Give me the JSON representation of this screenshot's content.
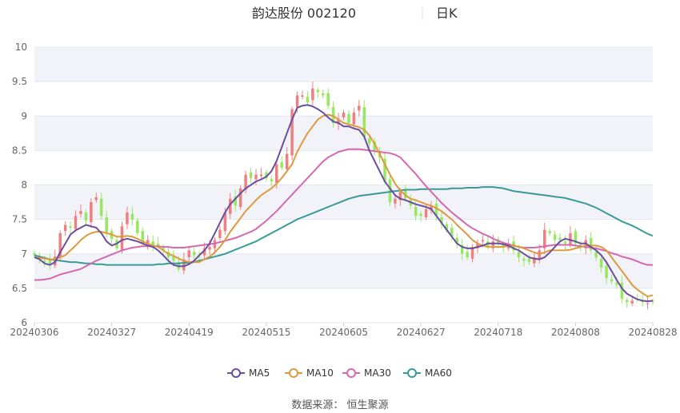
{
  "header": {
    "stock_title": "韵达股份 002120",
    "period": "日K"
  },
  "source": "数据来源： 恒生聚源",
  "colors": {
    "up": "#f08080",
    "down": "#95e85f",
    "ma5": "#6b4ea0",
    "ma10": "#e09a3e",
    "ma30": "#d568b0",
    "ma60": "#3a9999",
    "band": "#f2f3f8",
    "grid": "#e3e5ee"
  },
  "chart_data": {
    "type": "candlestick",
    "ylim": [
      6,
      10
    ],
    "y_ticks": [
      "6",
      "6.5",
      "7",
      "7.5",
      "8",
      "8.5",
      "9",
      "9.5",
      "10"
    ],
    "x_ticks": [
      "20240306",
      "20240327",
      "20240419",
      "20240515",
      "20240605",
      "20240627",
      "20240718",
      "20240808",
      "20240828"
    ],
    "legend": [
      {
        "key": "ma5",
        "label": "MA5"
      },
      {
        "key": "ma10",
        "label": "MA10"
      },
      {
        "key": "ma30",
        "label": "MA30"
      },
      {
        "key": "ma60",
        "label": "MA60"
      }
    ],
    "closes": [
      6.98,
      6.92,
      6.88,
      6.85,
      6.96,
      7.3,
      7.42,
      7.38,
      7.55,
      7.62,
      7.48,
      7.75,
      7.82,
      7.55,
      7.3,
      7.22,
      7.08,
      7.4,
      7.6,
      7.5,
      7.3,
      7.15,
      7.2,
      7.12,
      7.12,
      7.05,
      6.95,
      6.9,
      6.78,
      6.92,
      7.05,
      6.98,
      6.95,
      7.08,
      7.1,
      7.2,
      7.35,
      7.6,
      7.8,
      7.7,
      7.95,
      8.15,
      8.1,
      8.15,
      8.15,
      8.1,
      8.05,
      8.3,
      8.25,
      8.45,
      9.1,
      9.3,
      9.3,
      9.2,
      9.4,
      9.35,
      9.3,
      9.15,
      8.9,
      8.95,
      9.05,
      8.9,
      9.05,
      9.15,
      8.7,
      8.6,
      8.5,
      8.4,
      8.05,
      7.75,
      7.8,
      7.9,
      7.8,
      7.7,
      7.55,
      7.55,
      7.65,
      7.7,
      7.55,
      7.45,
      7.35,
      7.25,
      7.15,
      7.0,
      6.95,
      7.1,
      7.15,
      7.2,
      7.1,
      7.18,
      7.15,
      7.1,
      7.15,
      7.05,
      6.95,
      6.9,
      6.88,
      6.95,
      7.05,
      7.35,
      7.3,
      7.2,
      7.2,
      7.15,
      7.3,
      7.15,
      7.1,
      7.2,
      7.05,
      6.95,
      6.8,
      6.65,
      6.6,
      6.55,
      6.35,
      6.3,
      6.32,
      6.35,
      6.3,
      6.28,
      6.3
    ],
    "ma5": [
      6.95,
      6.92,
      6.86,
      6.84,
      6.88,
      7.02,
      7.15,
      7.28,
      7.34,
      7.38,
      7.42,
      7.4,
      7.38,
      7.3,
      7.18,
      7.12,
      7.15,
      7.2,
      7.22,
      7.2,
      7.18,
      7.15,
      7.12,
      7.1,
      7.05,
      6.98,
      6.9,
      6.84,
      6.82,
      6.82,
      6.85,
      6.9,
      6.98,
      7.05,
      7.15,
      7.3,
      7.45,
      7.6,
      7.72,
      7.8,
      7.88,
      7.95,
      8.0,
      8.05,
      8.08,
      8.12,
      8.2,
      8.35,
      8.55,
      8.75,
      8.95,
      9.12,
      9.15,
      9.16,
      9.14,
      9.1,
      9.05,
      8.98,
      8.92,
      8.9,
      8.85,
      8.85,
      8.82,
      8.8,
      8.7,
      8.5,
      8.35,
      8.2,
      8.05,
      7.95,
      7.85,
      7.8,
      7.78,
      7.75,
      7.72,
      7.7,
      7.68,
      7.65,
      7.55,
      7.45,
      7.35,
      7.25,
      7.15,
      7.1,
      7.08,
      7.08,
      7.1,
      7.12,
      7.15,
      7.15,
      7.15,
      7.14,
      7.12,
      7.08,
      7.05,
      7.0,
      6.95,
      6.93,
      6.92,
      6.95,
      7.02,
      7.1,
      7.18,
      7.22,
      7.2,
      7.18,
      7.15,
      7.15,
      7.1,
      7.05,
      6.98,
      6.88,
      6.75,
      6.62,
      6.5,
      6.42,
      6.38,
      6.34,
      6.32,
      6.31,
      6.32
    ],
    "ma10": [
      6.95,
      6.94,
      6.93,
      6.92,
      6.92,
      6.95,
      6.98,
      7.05,
      7.12,
      7.2,
      7.26,
      7.3,
      7.32,
      7.32,
      7.3,
      7.28,
      7.25,
      7.25,
      7.26,
      7.25,
      7.22,
      7.18,
      7.15,
      7.12,
      7.1,
      7.05,
      7.0,
      6.97,
      6.93,
      6.9,
      6.88,
      6.88,
      6.88,
      6.92,
      6.96,
      7.02,
      7.1,
      7.2,
      7.32,
      7.42,
      7.52,
      7.62,
      7.7,
      7.78,
      7.85,
      7.9,
      7.95,
      8.02,
      8.1,
      8.2,
      8.3,
      8.48,
      8.62,
      8.75,
      8.85,
      8.95,
      9.0,
      9.02,
      9.0,
      8.95,
      8.9,
      8.88,
      8.86,
      8.84,
      8.8,
      8.72,
      8.6,
      8.45,
      8.3,
      8.15,
      8.02,
      7.92,
      7.85,
      7.8,
      7.78,
      7.75,
      7.72,
      7.7,
      7.66,
      7.62,
      7.56,
      7.5,
      7.42,
      7.35,
      7.28,
      7.2,
      7.15,
      7.12,
      7.1,
      7.1,
      7.1,
      7.1,
      7.12,
      7.12,
      7.1,
      7.08,
      7.05,
      7.02,
      7.0,
      7.02,
      7.05,
      7.05,
      7.05,
      7.05,
      7.06,
      7.08,
      7.1,
      7.12,
      7.12,
      7.12,
      7.1,
      7.05,
      6.95,
      6.85,
      6.75,
      6.65,
      6.55,
      6.48,
      6.43,
      6.38,
      6.4
    ],
    "ma30": [
      6.62,
      6.62,
      6.63,
      6.64,
      6.67,
      6.7,
      6.72,
      6.74,
      6.76,
      6.78,
      6.82,
      6.86,
      6.9,
      6.93,
      6.96,
      6.99,
      7.02,
      7.05,
      7.07,
      7.09,
      7.1,
      7.11,
      7.11,
      7.11,
      7.11,
      7.1,
      7.1,
      7.09,
      7.09,
      7.09,
      7.1,
      7.11,
      7.12,
      7.13,
      7.14,
      7.15,
      7.17,
      7.19,
      7.21,
      7.23,
      7.26,
      7.29,
      7.32,
      7.36,
      7.42,
      7.48,
      7.55,
      7.62,
      7.7,
      7.78,
      7.86,
      7.94,
      8.02,
      8.1,
      8.18,
      8.26,
      8.34,
      8.4,
      8.44,
      8.48,
      8.5,
      8.52,
      8.52,
      8.52,
      8.51,
      8.5,
      8.49,
      8.48,
      8.47,
      8.46,
      8.44,
      8.4,
      8.32,
      8.24,
      8.16,
      8.07,
      7.98,
      7.9,
      7.82,
      7.74,
      7.67,
      7.6,
      7.54,
      7.48,
      7.42,
      7.37,
      7.33,
      7.29,
      7.26,
      7.22,
      7.19,
      7.16,
      7.14,
      7.12,
      7.1,
      7.09,
      7.09,
      7.09,
      7.1,
      7.11,
      7.12,
      7.13,
      7.13,
      7.13,
      7.13,
      7.12,
      7.11,
      7.1,
      7.09,
      7.08,
      7.06,
      7.04,
      7.01,
      6.99,
      6.96,
      6.94,
      6.92,
      6.89,
      6.86,
      6.84,
      6.84
    ],
    "ma60": [
      6.98,
      6.96,
      6.94,
      6.92,
      6.91,
      6.9,
      6.89,
      6.88,
      6.88,
      6.87,
      6.86,
      6.86,
      6.85,
      6.85,
      6.84,
      6.84,
      6.84,
      6.84,
      6.84,
      6.84,
      6.84,
      6.84,
      6.84,
      6.84,
      6.85,
      6.85,
      6.86,
      6.86,
      6.86,
      6.87,
      6.87,
      6.88,
      6.9,
      6.92,
      6.94,
      6.96,
      6.98,
      7.0,
      7.03,
      7.06,
      7.09,
      7.12,
      7.15,
      7.18,
      7.22,
      7.26,
      7.3,
      7.34,
      7.38,
      7.42,
      7.46,
      7.5,
      7.53,
      7.56,
      7.59,
      7.62,
      7.65,
      7.68,
      7.71,
      7.74,
      7.77,
      7.8,
      7.82,
      7.84,
      7.85,
      7.86,
      7.87,
      7.88,
      7.89,
      7.9,
      7.91,
      7.92,
      7.93,
      7.93,
      7.93,
      7.94,
      7.94,
      7.94,
      7.94,
      7.94,
      7.94,
      7.95,
      7.95,
      7.95,
      7.96,
      7.96,
      7.96,
      7.97,
      7.97,
      7.97,
      7.96,
      7.95,
      7.93,
      7.91,
      7.9,
      7.89,
      7.88,
      7.87,
      7.86,
      7.85,
      7.84,
      7.83,
      7.82,
      7.81,
      7.79,
      7.77,
      7.75,
      7.73,
      7.7,
      7.67,
      7.63,
      7.59,
      7.55,
      7.51,
      7.47,
      7.44,
      7.41,
      7.37,
      7.33,
      7.29,
      7.26
    ]
  }
}
